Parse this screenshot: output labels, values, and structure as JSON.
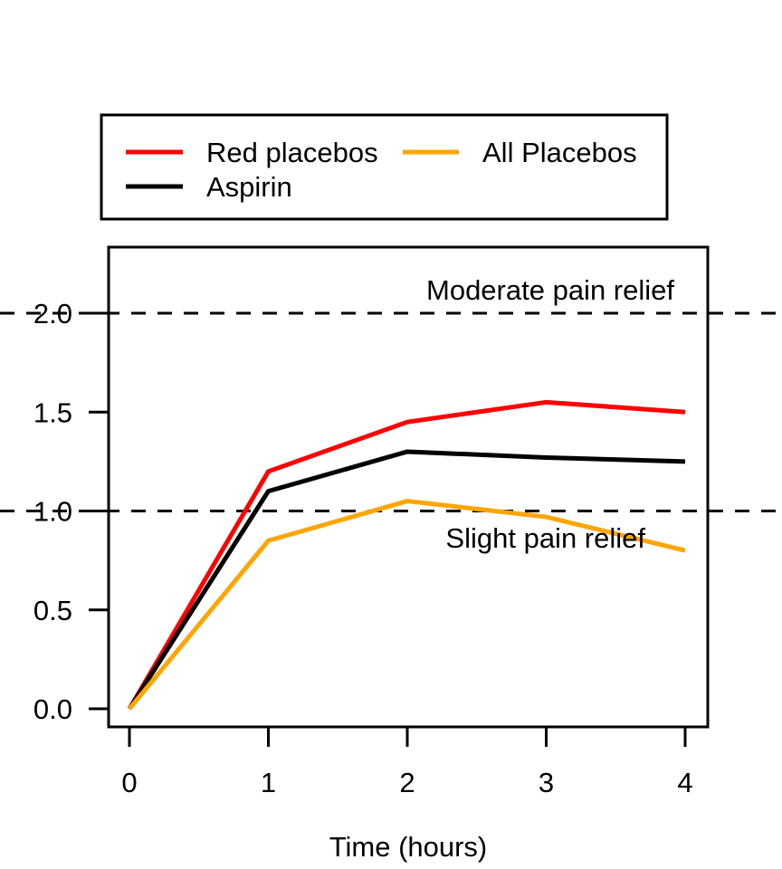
{
  "figure": {
    "background": "#ffffff"
  },
  "chart_data": {
    "type": "line",
    "title": "",
    "xlabel": "Time (hours)",
    "ylabel": "",
    "x": [
      0,
      1,
      2,
      3,
      4
    ],
    "x_tick_labels": [
      "0",
      "1",
      "2",
      "3",
      "4"
    ],
    "y_ticks": [
      0.0,
      0.5,
      1.0,
      1.5,
      2.0
    ],
    "y_tick_labels": [
      "0.0",
      "0.5",
      "1.0",
      "1.5",
      "2.0"
    ],
    "xlim": [
      -0.15,
      4.16
    ],
    "ylim": [
      -0.09,
      2.33
    ],
    "grid": false,
    "series": [
      {
        "name": "Red placebos",
        "color": "#ff0000",
        "values": [
          0,
          1.2,
          1.45,
          1.55,
          1.5
        ]
      },
      {
        "name": "Aspirin",
        "color": "#000000",
        "values": [
          0,
          1.1,
          1.3,
          1.27,
          1.25
        ]
      },
      {
        "name": "All Placebos",
        "color": "#ffa500",
        "values": [
          0,
          0.85,
          1.05,
          0.97,
          0.8
        ]
      }
    ],
    "thresholds": [
      {
        "value": 2.0,
        "label": "Moderate pain relief"
      },
      {
        "value": 1.0,
        "label": "Slight pain relief"
      }
    ],
    "legend": {
      "position": "top",
      "columns": 2,
      "entries": [
        "Red placebos",
        "Aspirin",
        "All Placebos"
      ]
    }
  }
}
